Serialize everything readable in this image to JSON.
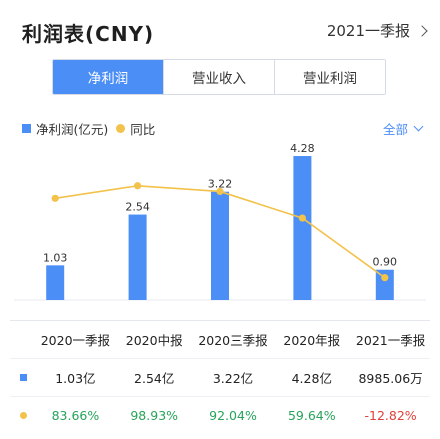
{
  "header": {
    "title": "利润表(CNY)",
    "report_period": "2021一季报"
  },
  "tabs": [
    {
      "label": "净利润",
      "active": true
    },
    {
      "label": "营业收入",
      "active": false
    },
    {
      "label": "营业利润",
      "active": false
    }
  ],
  "legend": {
    "bar_label": "净利润(亿元)",
    "line_label": "同比",
    "filter_label": "全部"
  },
  "colors": {
    "accent": "#4b8ef5",
    "line": "#f2c24a",
    "positive": "#27a35a",
    "negative": "#e0413b"
  },
  "chart_data": {
    "type": "bar",
    "categories": [
      "2020一季报",
      "2020中报",
      "2020三季报",
      "2020年报",
      "2021一季报"
    ],
    "series": [
      {
        "name": "净利润(亿元)",
        "values": [
          1.03,
          2.54,
          3.22,
          4.28,
          0.9
        ],
        "labels": [
          "1.03",
          "2.54",
          "3.22",
          "4.28",
          "0.90"
        ]
      },
      {
        "name": "同比",
        "type": "line",
        "values": [
          83.66,
          98.93,
          92.04,
          59.64,
          -12.82
        ]
      }
    ]
  },
  "table": {
    "headers": [
      "2020一季报",
      "2020中报",
      "2020三季报",
      "2020年报",
      "2021一季报"
    ],
    "profit_row": [
      "1.03亿",
      "2.54亿",
      "3.22亿",
      "4.28亿",
      "8985.06万"
    ],
    "yoy_row": [
      "83.66%",
      "98.93%",
      "92.04%",
      "59.64%",
      "-12.82%"
    ]
  }
}
